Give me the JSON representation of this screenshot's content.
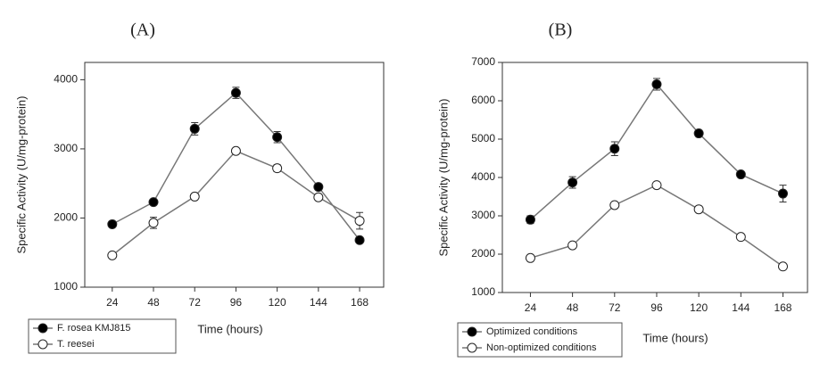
{
  "chart_data": [
    {
      "type": "line",
      "title": "(A)",
      "x_label": "Time (hours)",
      "y_label": "Specific Activity (U/mg-protein)",
      "x": [
        24,
        48,
        72,
        96,
        120,
        144,
        168
      ],
      "xlim": [
        8,
        182
      ],
      "xticks": [
        24,
        48,
        72,
        96,
        120,
        144,
        168
      ],
      "ylim": [
        1000,
        4250
      ],
      "yticks": [
        1000,
        2000,
        3000,
        4000
      ],
      "series": [
        {
          "name": "F. rosea KMJ815",
          "color": "#000000",
          "values": [
            1910,
            2230,
            3290,
            3810,
            3170,
            2450,
            1680
          ],
          "errors": [
            30,
            30,
            90,
            80,
            80,
            30,
            40
          ]
        },
        {
          "name": "T. reesei",
          "color": "#ffffff",
          "values": [
            1460,
            1930,
            2310,
            2970,
            2720,
            2300,
            1960
          ],
          "errors": [
            30,
            80,
            40,
            30,
            50,
            30,
            120
          ]
        }
      ]
    },
    {
      "type": "line",
      "title": "(B)",
      "x_label": "Time (hours)",
      "y_label": "Specific Activity (U/mg-protein)",
      "x": [
        24,
        48,
        72,
        96,
        120,
        144,
        168
      ],
      "xlim": [
        8,
        182
      ],
      "xticks": [
        24,
        48,
        72,
        96,
        120,
        144,
        168
      ],
      "ylim": [
        1000,
        7000
      ],
      "yticks": [
        1000,
        2000,
        3000,
        4000,
        5000,
        6000,
        7000
      ],
      "series": [
        {
          "name": "Optimized conditions",
          "color": "#000000",
          "values": [
            2900,
            3870,
            4750,
            6430,
            5150,
            4080,
            3580
          ],
          "errors": [
            100,
            150,
            180,
            150,
            80,
            40,
            220
          ]
        },
        {
          "name": "Non-optimized conditions",
          "color": "#ffffff",
          "values": [
            1900,
            2230,
            3280,
            3800,
            3170,
            2450,
            1680
          ],
          "errors": [
            30,
            30,
            40,
            30,
            40,
            30,
            30
          ]
        }
      ]
    }
  ]
}
